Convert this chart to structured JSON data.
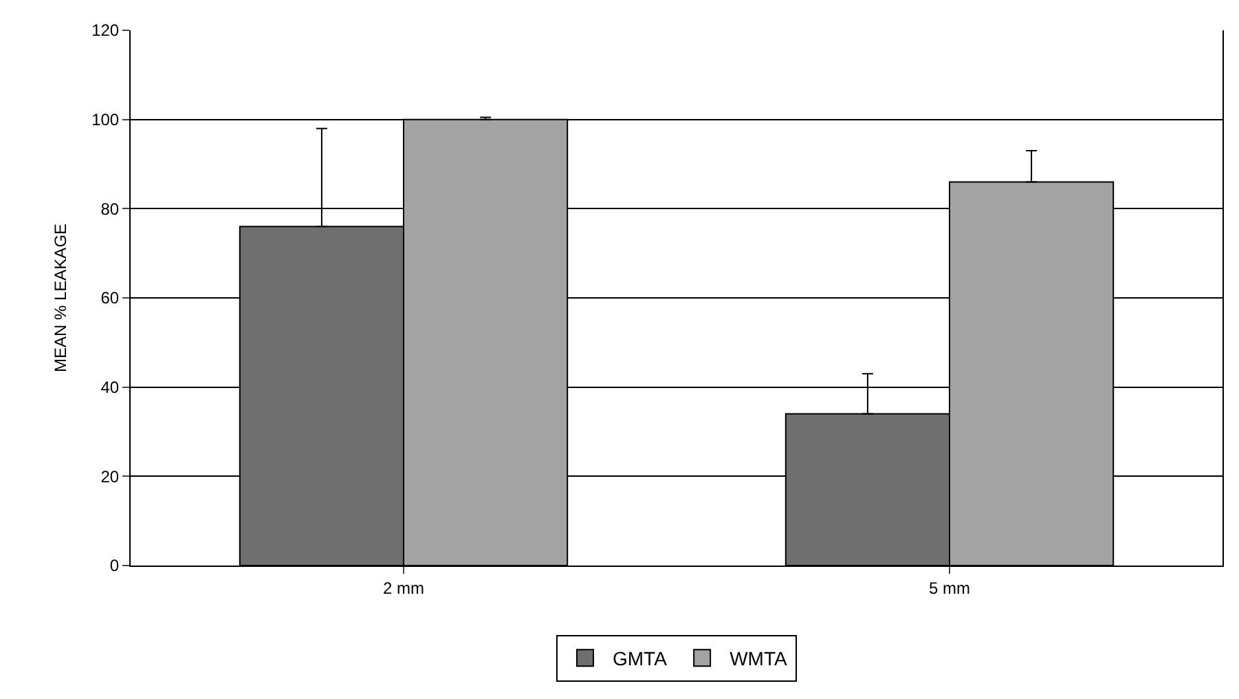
{
  "chart_data": {
    "type": "bar",
    "ylabel": "MEAN % LEAKAGE",
    "categories": [
      "2 mm",
      "5 mm"
    ],
    "series": [
      {
        "name": "GMTA",
        "color": "#6f6f6f",
        "values": [
          76,
          34
        ],
        "errors": [
          [
            76,
            98
          ],
          [
            34,
            43
          ]
        ]
      },
      {
        "name": "WMTA",
        "color": "#a3a3a3",
        "values": [
          100,
          86
        ],
        "errors": [
          [
            100,
            100.5
          ],
          [
            86,
            93
          ]
        ]
      }
    ],
    "ylim": [
      0,
      120
    ],
    "yticks": [
      0,
      20,
      40,
      60,
      80,
      100,
      120
    ],
    "grid": "y",
    "legend": "bottom"
  }
}
